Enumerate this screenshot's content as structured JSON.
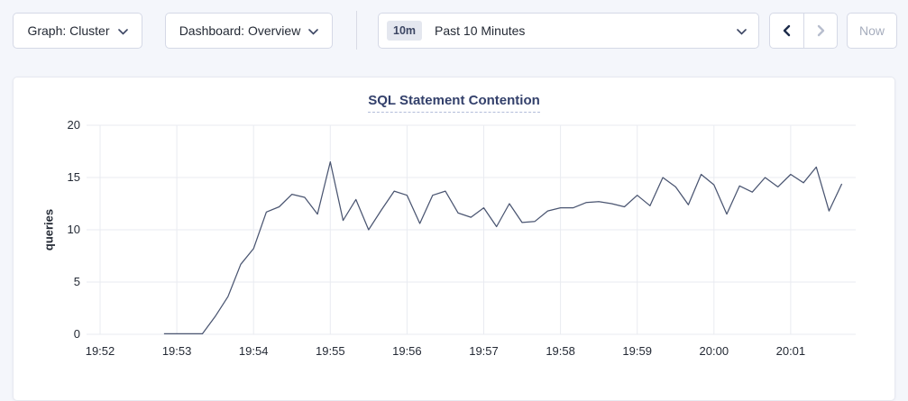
{
  "toolbar": {
    "graph_dropdown_label": "Graph: Cluster",
    "dashboard_dropdown_label": "Dashboard: Overview",
    "time_badge": "10m",
    "time_label": "Past 10 Minutes",
    "now_button_label": "Now"
  },
  "colors": {
    "line": "#4a5571",
    "grid": "#e9ebf1",
    "title": "#33406b",
    "page_background": "#f4f6fb"
  },
  "chart_data": {
    "type": "line",
    "title": "SQL Statement Contention",
    "xlabel": "",
    "ylabel": "queries",
    "ylim": [
      0,
      20
    ],
    "y_ticks": [
      0,
      5,
      10,
      15,
      20
    ],
    "x_ticks": [
      "19:52",
      "19:53",
      "19:54",
      "19:55",
      "19:56",
      "19:57",
      "19:58",
      "19:59",
      "20:00",
      "20:01"
    ],
    "grid": true,
    "legend": "none",
    "series": [
      {
        "name": "SQL Statement Contention",
        "points": [
          [
            "19:52:50",
            0.05
          ],
          [
            "19:53:00",
            0.05
          ],
          [
            "19:53:10",
            0.05
          ],
          [
            "19:53:20",
            0.05
          ],
          [
            "19:53:30",
            1.7
          ],
          [
            "19:53:40",
            3.6
          ],
          [
            "19:53:50",
            6.7
          ],
          [
            "19:54:00",
            8.2
          ],
          [
            "19:54:10",
            11.7
          ],
          [
            "19:54:20",
            12.2
          ],
          [
            "19:54:30",
            13.4
          ],
          [
            "19:54:40",
            13.1
          ],
          [
            "19:54:50",
            11.5
          ],
          [
            "19:55:00",
            16.5
          ],
          [
            "19:55:10",
            10.9
          ],
          [
            "19:55:20",
            12.9
          ],
          [
            "19:55:30",
            10.0
          ],
          [
            "19:55:40",
            11.9
          ],
          [
            "19:55:50",
            13.7
          ],
          [
            "19:56:00",
            13.3
          ],
          [
            "19:56:10",
            10.6
          ],
          [
            "19:56:20",
            13.3
          ],
          [
            "19:56:30",
            13.7
          ],
          [
            "19:56:40",
            11.6
          ],
          [
            "19:56:50",
            11.2
          ],
          [
            "19:57:00",
            12.1
          ],
          [
            "19:57:10",
            10.3
          ],
          [
            "19:57:20",
            12.5
          ],
          [
            "19:57:30",
            10.7
          ],
          [
            "19:57:40",
            10.8
          ],
          [
            "19:57:50",
            11.8
          ],
          [
            "19:58:00",
            12.1
          ],
          [
            "19:58:10",
            12.1
          ],
          [
            "19:58:20",
            12.6
          ],
          [
            "19:58:30",
            12.7
          ],
          [
            "19:58:40",
            12.5
          ],
          [
            "19:58:50",
            12.2
          ],
          [
            "19:59:00",
            13.3
          ],
          [
            "19:59:10",
            12.3
          ],
          [
            "19:59:20",
            15.0
          ],
          [
            "19:59:30",
            14.1
          ],
          [
            "19:59:40",
            12.4
          ],
          [
            "19:59:50",
            15.3
          ],
          [
            "20:00:00",
            14.3
          ],
          [
            "20:00:10",
            11.5
          ],
          [
            "20:00:20",
            14.2
          ],
          [
            "20:00:30",
            13.6
          ],
          [
            "20:00:40",
            15.0
          ],
          [
            "20:00:50",
            14.1
          ],
          [
            "20:01:00",
            15.3
          ],
          [
            "20:01:10",
            14.5
          ],
          [
            "20:01:20",
            16.0
          ],
          [
            "20:01:30",
            11.8
          ],
          [
            "20:01:40",
            14.4
          ]
        ]
      }
    ]
  }
}
